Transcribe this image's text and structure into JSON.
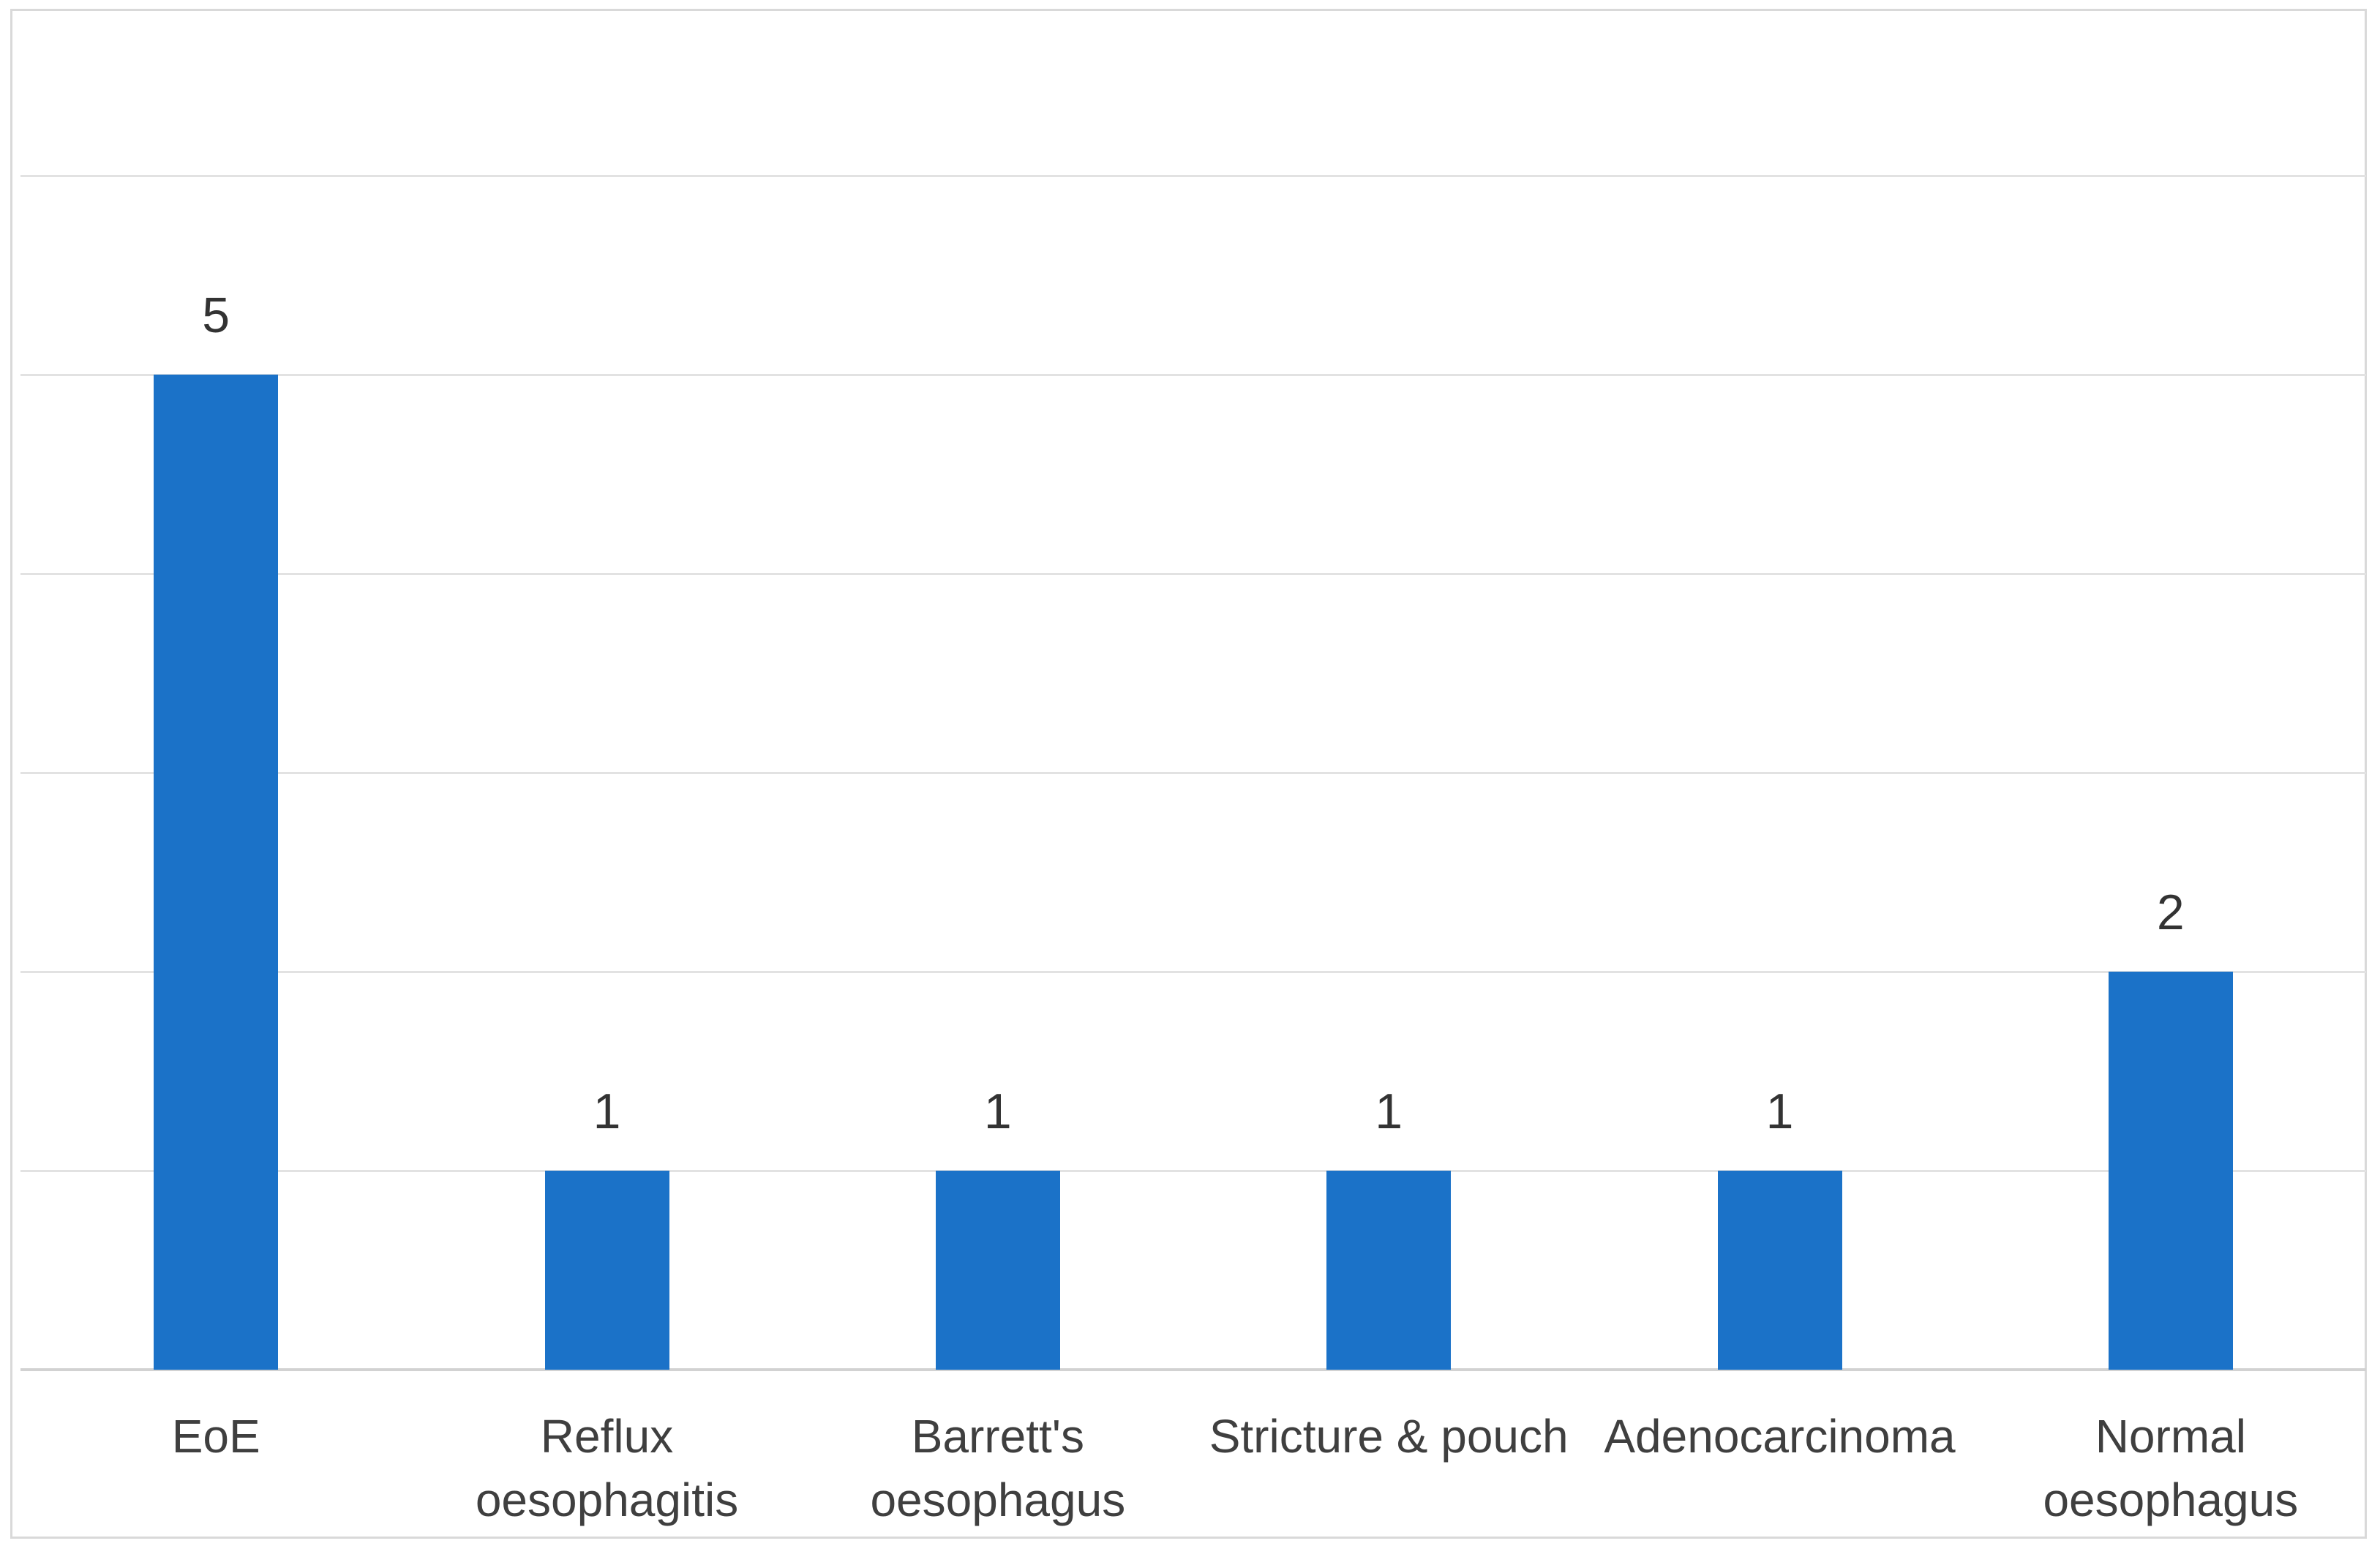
{
  "figure": {
    "background": "#FFFFFF",
    "border_color": "#D9D9D9",
    "gridline_color": "#E2E2E2",
    "axis_line_color": "#D2D2D2",
    "bar_color": "#1B72C8",
    "category_label_color": "#3F3F3F",
    "value_label_color": "#333333"
  },
  "chart_data": {
    "type": "bar",
    "title": "",
    "xlabel": "",
    "ylabel": "",
    "categories": [
      "EoE",
      "Reflux oesophagitis",
      "Barrett's oesophagus",
      "Stricture & pouch",
      "Adenocarcinoma",
      "Normal oesophagus"
    ],
    "category_lines": [
      [
        "EoE"
      ],
      [
        "Reflux",
        "oesophagitis"
      ],
      [
        "Barrett's",
        "oesophagus"
      ],
      [
        "Stricture & pouch"
      ],
      [
        "Adenocarcinoma"
      ],
      [
        "Normal",
        "oesophagus"
      ]
    ],
    "values": [
      5,
      1,
      1,
      1,
      1,
      2
    ],
    "data_labels": [
      "5",
      "1",
      "1",
      "1",
      "1",
      "2"
    ],
    "ylim": [
      0,
      6
    ],
    "y_major_unit": 1,
    "y_axis_tick_labels_visible": false,
    "gridlines": "horizontal",
    "legend_position": "none",
    "data_label_position": "outside-end"
  }
}
